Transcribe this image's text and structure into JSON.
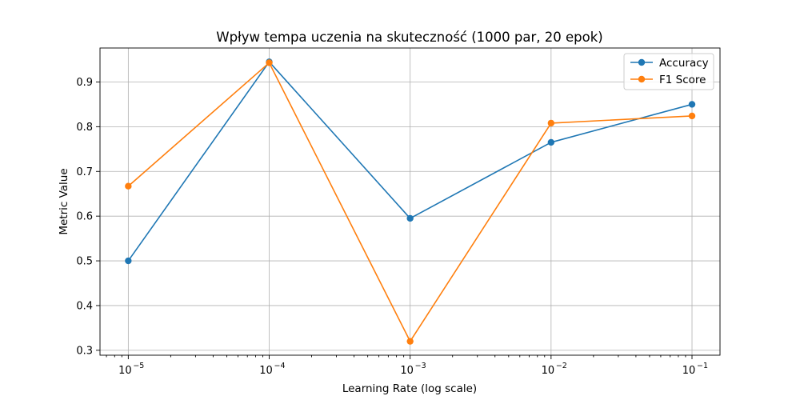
{
  "chart_data": {
    "type": "line",
    "title": "Wpływ tempa uczenia na skuteczność (1000 par, 20 epok)",
    "xlabel": "Learning Rate (log scale)",
    "ylabel": "Metric Value",
    "xscale": "log",
    "x": [
      1e-05,
      0.0001,
      0.001,
      0.01,
      0.1
    ],
    "x_tick_labels": [
      {
        "base": "10",
        "exp": "−5"
      },
      {
        "base": "10",
        "exp": "−4"
      },
      {
        "base": "10",
        "exp": "−3"
      },
      {
        "base": "10",
        "exp": "−2"
      },
      {
        "base": "10",
        "exp": "−1"
      }
    ],
    "yticks": [
      0.3,
      0.4,
      0.5,
      0.6,
      0.7,
      0.8,
      0.9
    ],
    "y_tick_labels": [
      "0.3",
      "0.4",
      "0.5",
      "0.6",
      "0.7",
      "0.8",
      "0.9"
    ],
    "xlim": [
      6.3e-06,
      0.158
    ],
    "ylim": [
      0.289,
      0.976
    ],
    "grid": true,
    "legend_position": "top-right",
    "series": [
      {
        "name": "Accuracy",
        "color": "#1f77b4",
        "marker": "circle",
        "values": [
          0.5,
          0.945,
          0.595,
          0.765,
          0.85
        ]
      },
      {
        "name": "F1 Score",
        "color": "#ff7f0e",
        "marker": "circle",
        "values": [
          0.667,
          0.943,
          0.32,
          0.808,
          0.824
        ]
      }
    ]
  }
}
